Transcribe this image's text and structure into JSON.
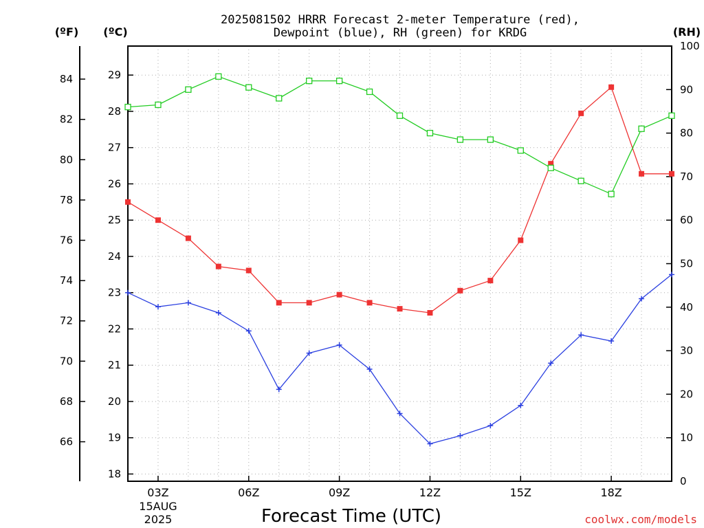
{
  "title_line1": "2025081502 HRRR Forecast 2-meter Temperature (red),",
  "title_line2": "Dewpoint (blue), RH (green) for KRDG",
  "unit_f": "(ºF)",
  "unit_c": "(ºC)",
  "unit_rh": "(RH)",
  "xlabel": "Forecast Time (UTC)",
  "date_day": "15AUG",
  "date_year": "2025",
  "credit": "coolwx.com/models",
  "colors": {
    "temperature": "#ee3333",
    "dewpoint": "#2a3fe0",
    "rh": "#22cc22",
    "grid": "#aaaaaa"
  },
  "chart_data": {
    "type": "line",
    "x_hours": [
      2,
      3,
      4,
      5,
      6,
      7,
      8,
      9,
      10,
      11,
      12,
      13,
      14,
      15,
      16,
      17,
      18,
      19,
      20
    ],
    "x_ticks": [
      {
        "hour": 3,
        "label": "03Z"
      },
      {
        "hour": 6,
        "label": "06Z"
      },
      {
        "hour": 9,
        "label": "09Z"
      },
      {
        "hour": 12,
        "label": "12Z"
      },
      {
        "hour": 15,
        "label": "15Z"
      },
      {
        "hour": 18,
        "label": "18Z"
      }
    ],
    "xlim": [
      2,
      20
    ],
    "y_left_f": {
      "ticks": [
        66,
        68,
        70,
        72,
        74,
        76,
        78,
        80,
        82,
        84
      ]
    },
    "y_left_c": {
      "ylim": [
        17.8,
        29.8
      ],
      "ticks": [
        18,
        19,
        20,
        21,
        22,
        23,
        24,
        25,
        26,
        27,
        28,
        29
      ]
    },
    "y_right_rh": {
      "ylim": [
        0,
        100
      ],
      "ticks": [
        0,
        10,
        20,
        30,
        40,
        50,
        60,
        70,
        80,
        90,
        100
      ]
    },
    "grid": true,
    "series": [
      {
        "name": "Temperature",
        "axis": "F",
        "marker": "filled-square",
        "values": [
          77.9,
          77.0,
          76.1,
          74.7,
          74.5,
          72.9,
          72.9,
          73.3,
          72.9,
          72.6,
          72.4,
          73.5,
          74.0,
          76.0,
          79.8,
          82.3,
          83.6,
          79.3,
          79.3
        ]
      },
      {
        "name": "Dewpoint",
        "axis": "F",
        "marker": "plus",
        "values": [
          73.4,
          72.7,
          72.9,
          72.4,
          71.5,
          68.6,
          70.4,
          70.8,
          69.6,
          67.4,
          65.9,
          66.3,
          66.8,
          67.8,
          69.9,
          71.3,
          71.0,
          73.1,
          74.3
        ]
      },
      {
        "name": "RH",
        "axis": "RH",
        "marker": "open-square",
        "values": [
          86,
          86.5,
          90,
          93,
          90.5,
          88,
          92,
          92,
          89.5,
          84,
          80,
          78.5,
          78.5,
          76,
          72,
          69,
          66,
          81,
          84
        ]
      }
    ]
  }
}
